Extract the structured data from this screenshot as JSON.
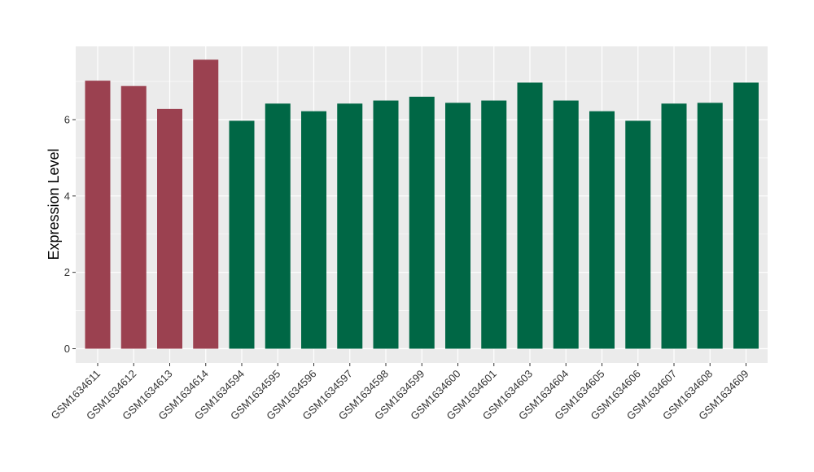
{
  "chart_data": {
    "type": "bar",
    "title": "",
    "xlabel": "",
    "ylabel": "Expression Level",
    "ylim": [
      0,
      7.95
    ],
    "yticks": [
      0,
      2,
      4,
      6
    ],
    "grid": true,
    "colors": {
      "group_a": "#9b4150",
      "group_b": "#006745",
      "panel": "#ebebeb",
      "grid": "#ffffff"
    },
    "categories": [
      "GSM1634611",
      "GSM1634612",
      "GSM1634613",
      "GSM1634614",
      "GSM1634594",
      "GSM1634595",
      "GSM1634596",
      "GSM1634597",
      "GSM1634598",
      "GSM1634599",
      "GSM1634600",
      "GSM1634601",
      "GSM1634603",
      "GSM1634604",
      "GSM1634605",
      "GSM1634606",
      "GSM1634607",
      "GSM1634608",
      "GSM1634609"
    ],
    "values": [
      7.02,
      6.88,
      6.28,
      7.57,
      5.97,
      6.42,
      6.22,
      6.42,
      6.5,
      6.6,
      6.44,
      6.5,
      6.97,
      6.5,
      6.22,
      5.97,
      6.42,
      6.44,
      6.97
    ],
    "groups": [
      "a",
      "a",
      "a",
      "a",
      "b",
      "b",
      "b",
      "b",
      "b",
      "b",
      "b",
      "b",
      "b",
      "b",
      "b",
      "b",
      "b",
      "b",
      "b"
    ]
  }
}
